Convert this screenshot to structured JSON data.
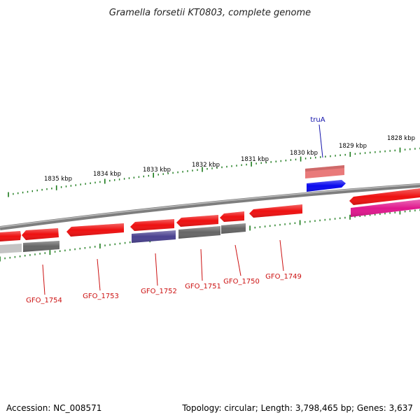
{
  "title": "Gramella forsetii KT0803, complete genome",
  "footer": {
    "accession": "Accession: NC_008571",
    "topology": "Topology: circular; Length: 3,798,465 bp; Genes: 3,637"
  },
  "colors": {
    "backbone": "#8a8a8a",
    "tick": "#1a7a1a",
    "forward_gene": "#ee1111",
    "forward_rna": "#e97a7a",
    "reverse_gray": "#666666",
    "reverse_navy": "#4a4290",
    "trua_cds": "#0a0aee",
    "magenta": "#e0188e",
    "label_red": "#cc1111",
    "label_blue": "#1111aa"
  },
  "scale_labels": [
    "1835 kbp",
    "1834 kbp",
    "1833 kbp",
    "1832 kbp",
    "1831 kbp",
    "1830 kbp",
    "1829 kbp",
    "1828 kbp"
  ],
  "gene_labels": [
    {
      "text": "truA",
      "color": "blue"
    },
    {
      "text": "GFO_1754",
      "color": "red"
    },
    {
      "text": "GFO_1753",
      "color": "red"
    },
    {
      "text": "GFO_1752",
      "color": "red"
    },
    {
      "text": "GFO_1751",
      "color": "red"
    },
    {
      "text": "GFO_1750",
      "color": "red"
    },
    {
      "text": "GFO_1749",
      "color": "red"
    }
  ]
}
